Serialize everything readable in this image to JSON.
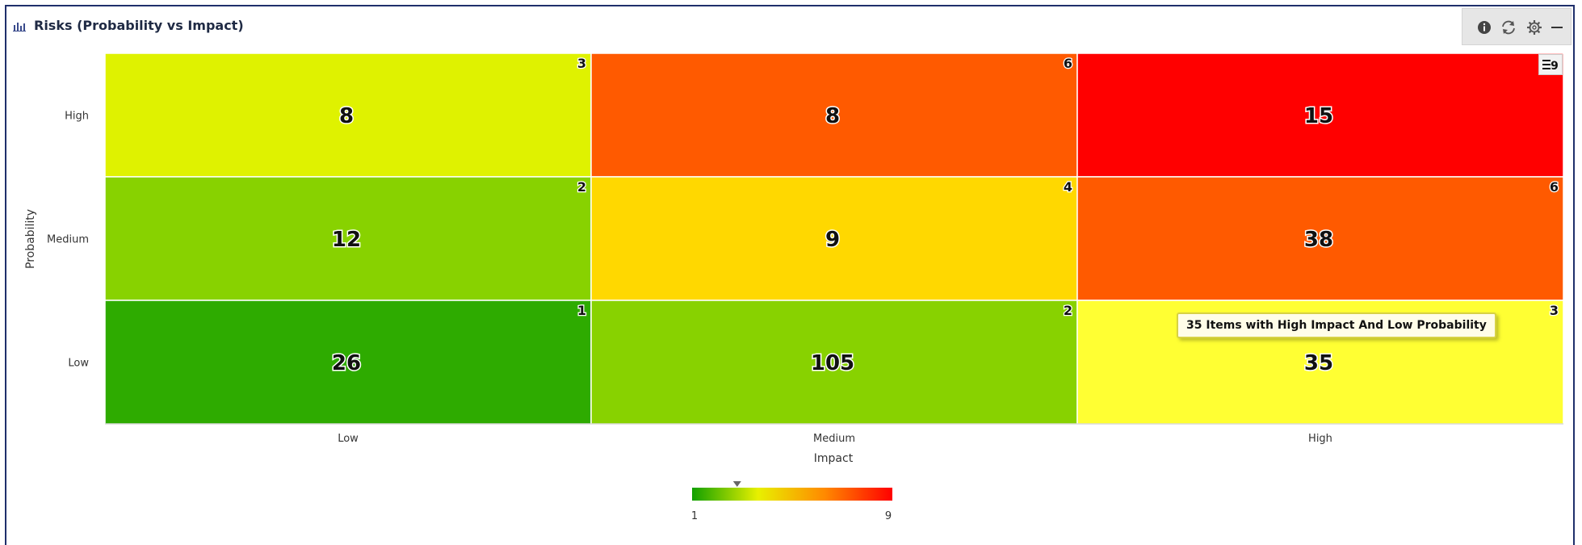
{
  "header": {
    "title": "Risks (Probability vs Impact)",
    "icons": [
      "bar-chart-icon",
      "info-icon",
      "refresh-icon",
      "gear-icon",
      "minimize-icon"
    ]
  },
  "tooltip": {
    "text": "35 Items with High Impact And Low Probability"
  },
  "colors": {
    "frame": "#1f2f6b",
    "scale": [
      "#11a000",
      "#e8f000",
      "#ff8a00",
      "#ff0000"
    ]
  },
  "chart_data": {
    "type": "heatmap",
    "xlabel": "Impact",
    "ylabel": "Probability",
    "x_categories": [
      "Low",
      "Medium",
      "High"
    ],
    "y_categories": [
      "High",
      "Medium",
      "Low"
    ],
    "cells": [
      {
        "x": "Low",
        "y": "High",
        "count": 8,
        "score": 3,
        "color": "#dff200"
      },
      {
        "x": "Medium",
        "y": "High",
        "count": 8,
        "score": 6,
        "color": "#ff5a00"
      },
      {
        "x": "High",
        "y": "High",
        "count": 15,
        "score": 9,
        "color": "#ff0000"
      },
      {
        "x": "Low",
        "y": "Medium",
        "count": 12,
        "score": 2,
        "color": "#88d200"
      },
      {
        "x": "Medium",
        "y": "Medium",
        "count": 9,
        "score": 4,
        "color": "#ffd800"
      },
      {
        "x": "High",
        "y": "Medium",
        "count": 38,
        "score": 6,
        "color": "#ff5a00"
      },
      {
        "x": "Low",
        "y": "Low",
        "count": 26,
        "score": 1,
        "color": "#2eab00"
      },
      {
        "x": "Medium",
        "y": "Low",
        "count": 105,
        "score": 2,
        "color": "#88d200"
      },
      {
        "x": "High",
        "y": "Low",
        "count": 35,
        "score": 3,
        "color": "#ffff33"
      }
    ],
    "color_scale": {
      "min": 1,
      "max": 9,
      "min_label": "1",
      "max_label": "9",
      "marker_value": 2.8
    },
    "legend_button": "≡9"
  }
}
